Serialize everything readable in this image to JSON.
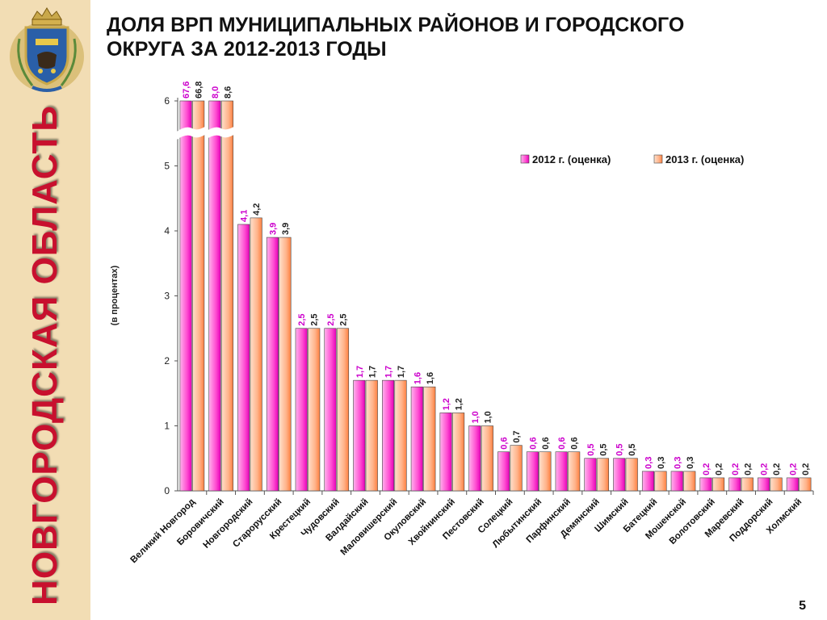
{
  "sidebar": {
    "title": "НОВГОРОДСКАЯ ОБЛАСТЬ"
  },
  "header": {
    "title_line1": "ДОЛЯ ВРП МУНИЦИПАЛЬНЫХ РАЙОНОВ И ГОРОДСКОГО",
    "title_line2": "ОКРУГА ЗА 2012-2013 ГОДЫ"
  },
  "page_number": "5",
  "colors": {
    "series_2012": "#ff33cc",
    "series_2013": "#ff9966",
    "label_2012": "#cc00cc",
    "label_2013": "#222222",
    "sidebar_bg": "#f2ddb4",
    "sidebar_text": "#c8102e"
  },
  "chart_data": {
    "type": "bar",
    "ylabel": "(в процентах)",
    "ylim": [
      0,
      6
    ],
    "yticks": [
      0,
      1,
      2,
      3,
      4,
      5,
      6
    ],
    "axis_break": true,
    "legend_position": "top-right",
    "categories": [
      "Великий Новгород",
      "Боровичский",
      "Новгородский",
      "Старорусский",
      "Крестецкий",
      "Чудовский",
      "Валдайский",
      "Маловишерский",
      "Окуловский",
      "Хвойнинский",
      "Пестовский",
      "Солецкий",
      "Любытинский",
      "Парфинский",
      "Демянский",
      "Шимский",
      "Батецкий",
      "Мошенской",
      "Волотовский",
      "Маревский",
      "Поддорский",
      "Холмский"
    ],
    "series": [
      {
        "name": "2012 г. (оценка)",
        "values": [
          67.6,
          8.0,
          4.1,
          3.9,
          2.5,
          2.5,
          1.7,
          1.7,
          1.6,
          1.2,
          1.0,
          0.6,
          0.6,
          0.6,
          0.5,
          0.5,
          0.3,
          0.3,
          0.2,
          0.2,
          0.2,
          0.2
        ],
        "labels": [
          "67,6",
          "8,0",
          "4,1",
          "3,9",
          "2,5",
          "2,5",
          "1,7",
          "1,7",
          "1,6",
          "1,2",
          "1,0",
          "0,6",
          "0,6",
          "0,6",
          "0,5",
          "0,5",
          "0,3",
          "0,3",
          "0,2",
          "0,2",
          "0,2",
          "0,2"
        ]
      },
      {
        "name": "2013 г. (оценка)",
        "values": [
          66.8,
          8.6,
          4.2,
          3.9,
          2.5,
          2.5,
          1.7,
          1.7,
          1.6,
          1.2,
          1.0,
          0.7,
          0.6,
          0.6,
          0.5,
          0.5,
          0.3,
          0.3,
          0.2,
          0.2,
          0.2,
          0.2
        ],
        "labels": [
          "66,8",
          "8,6",
          "4,2",
          "3,9",
          "2,5",
          "2,5",
          "1,7",
          "1,7",
          "1,6",
          "1,2",
          "1,0",
          "0,7",
          "0,6",
          "0,6",
          "0,5",
          "0,5",
          "0,3",
          "0,3",
          "0,2",
          "0,2",
          "0,2",
          "0,2"
        ]
      }
    ]
  }
}
